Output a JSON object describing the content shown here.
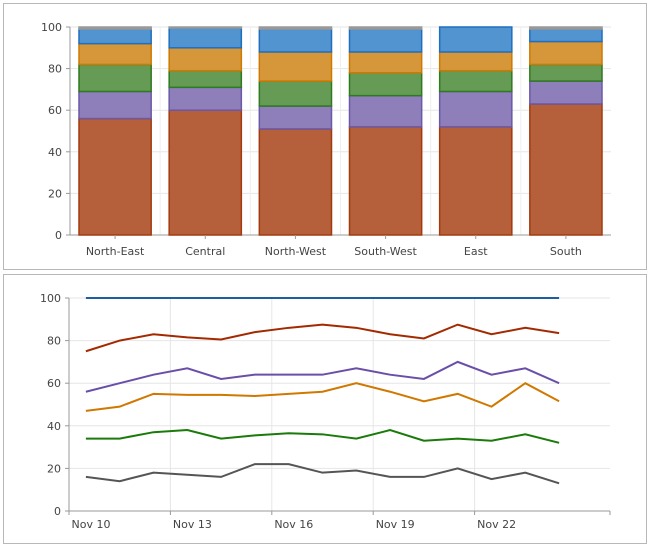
{
  "chart_data": [
    {
      "type": "bar",
      "stacked": true,
      "categories": [
        "North-East",
        "Central",
        "North-West",
        "South-West",
        "East",
        "South"
      ],
      "ylim": [
        0,
        100
      ],
      "yticks": [
        0,
        20,
        40,
        60,
        80,
        100
      ],
      "grid": true,
      "series": [
        {
          "color": "#b5603a",
          "stroke": "#a33a0f",
          "values": [
            56,
            60,
            51,
            52,
            52,
            63
          ]
        },
        {
          "color": "#8e7fbb",
          "stroke": "#6a58a8",
          "values": [
            13,
            11,
            11,
            15,
            17,
            11
          ]
        },
        {
          "color": "#669b56",
          "stroke": "#2e7a1f",
          "values": [
            13,
            8,
            12,
            11,
            10,
            8
          ]
        },
        {
          "color": "#d6973a",
          "stroke": "#d07800",
          "values": [
            10,
            11,
            14,
            10,
            9,
            11
          ]
        },
        {
          "color": "#5294d0",
          "stroke": "#1f6fc0",
          "values": [
            7,
            9.5,
            11,
            11,
            12,
            6
          ]
        },
        {
          "color": "#999999",
          "stroke": "#999999",
          "values": [
            1,
            0.5,
            1,
            1,
            0,
            1
          ]
        }
      ]
    },
    {
      "type": "line",
      "x": [
        "Nov 10",
        "Nov 11",
        "Nov 12",
        "Nov 13",
        "Nov 14",
        "Nov 15",
        "Nov 16",
        "Nov 17",
        "Nov 18",
        "Nov 19",
        "Nov 20",
        "Nov 21",
        "Nov 22",
        "Nov 23",
        "Nov 24"
      ],
      "xticks": [
        "Nov 10",
        "Nov 13",
        "Nov 16",
        "Nov 19",
        "Nov 22"
      ],
      "ylim": [
        0,
        100
      ],
      "yticks": [
        0,
        20,
        40,
        60,
        80,
        100
      ],
      "grid": true,
      "series": [
        {
          "color": "#1f5f9f",
          "values": [
            100,
            100,
            100,
            100,
            100,
            100,
            100,
            100,
            100,
            100,
            100,
            100,
            100,
            100,
            100
          ]
        },
        {
          "color": "#a32a00",
          "values": [
            75,
            80,
            83,
            81.5,
            80.5,
            84,
            86,
            87.5,
            86,
            83,
            81,
            87.5,
            83,
            86,
            83.5
          ]
        },
        {
          "color": "#6a4fa8",
          "values": [
            56,
            60,
            64,
            67,
            62,
            64,
            64,
            64,
            67,
            64,
            62,
            70,
            64,
            67,
            60
          ]
        },
        {
          "color": "#d07800",
          "values": [
            47,
            49,
            55,
            54.5,
            54.5,
            54,
            55,
            56,
            60,
            56,
            51.5,
            55,
            49,
            60,
            51.5
          ]
        },
        {
          "color": "#1a7a0a",
          "values": [
            34,
            34,
            37,
            38,
            34,
            35.5,
            36.5,
            36,
            34,
            38,
            33,
            34,
            33,
            36,
            32
          ]
        },
        {
          "color": "#555555",
          "values": [
            16,
            14,
            18,
            17,
            16,
            22,
            22,
            18,
            19,
            16,
            16,
            20,
            15,
            18,
            13
          ]
        }
      ]
    }
  ]
}
